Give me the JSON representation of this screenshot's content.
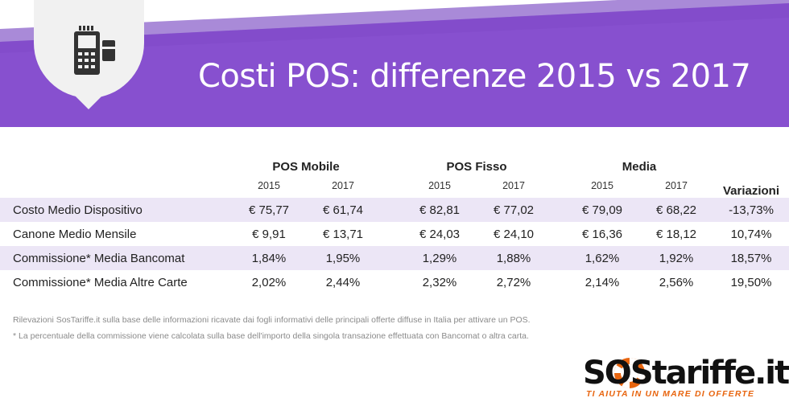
{
  "header": {
    "title": "Costi POS: differenze 2015 vs 2017",
    "icon": "pos-terminal-icon",
    "watermark": "SOSTariffe.it"
  },
  "colors": {
    "banner_purple": "#8750cf",
    "banner_dark": "#6a3bb3",
    "shaded_row": "#ece6f6",
    "logo_orange": "#e8650f"
  },
  "table": {
    "groups": [
      "POS Mobile",
      "POS Fisso",
      "Media"
    ],
    "years": [
      "2015",
      "2017",
      "2015",
      "2017",
      "2015",
      "2017"
    ],
    "variation_header": "Variazioni",
    "rows": [
      {
        "label": "Costo Medio Dispositivo",
        "cells": [
          "€ 75,77",
          "€ 61,74",
          "€ 82,81",
          "€ 77,02",
          "€ 79,09",
          "€ 68,22"
        ],
        "variation": "-13,73%"
      },
      {
        "label": "Canone Medio Mensile",
        "cells": [
          "€ 9,91",
          "€ 13,71",
          "€ 24,03",
          "€ 24,10",
          "€ 16,36",
          "€ 18,12"
        ],
        "variation": "10,74%"
      },
      {
        "label": "Commissione* Media Bancomat",
        "cells": [
          "1,84%",
          "1,95%",
          "1,29%",
          "1,88%",
          "1,62%",
          "1,92%"
        ],
        "variation": "18,57%"
      },
      {
        "label": "Commissione* Media Altre Carte",
        "cells": [
          "2,02%",
          "2,44%",
          "2,32%",
          "2,72%",
          "2,14%",
          "2,56%"
        ],
        "variation": "19,50%"
      }
    ]
  },
  "notes": [
    "Rilevazioni SosTariffe.it sulla base delle informazioni ricavate dai fogli informativi delle principali offerte diffuse in Italia per attivare un POS.",
    "* La percentuale della commissione viene calcolata sulla base dell'importo della singola transazione effettuata con Bancomat o altra carta."
  ],
  "logo": {
    "wordmark": "SOStariffe.it",
    "tagline": "TI AIUTA IN UN MARE DI OFFERTE"
  }
}
